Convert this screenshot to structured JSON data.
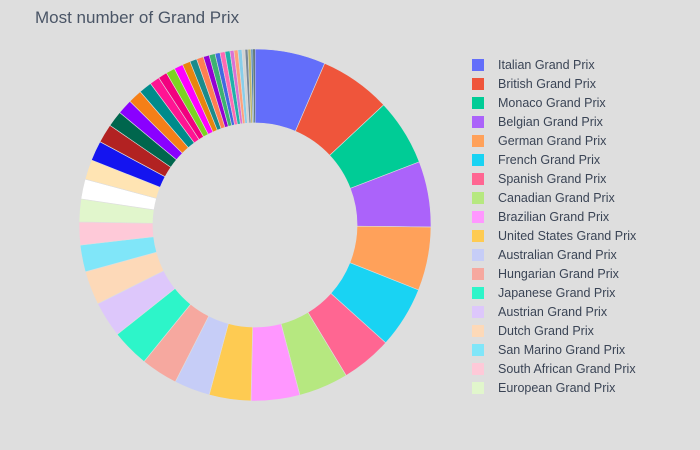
{
  "chart_data": {
    "type": "pie",
    "title": "Most number of Grand Prix",
    "hole": 0.58,
    "legend_position": "right",
    "slices": [
      {
        "label": "Italian Grand Prix",
        "value": 71,
        "color": "#636efa"
      },
      {
        "label": "British Grand Prix",
        "value": 72,
        "color": "#ef553b"
      },
      {
        "label": "Monaco Grand Prix",
        "value": 67,
        "color": "#00cc96"
      },
      {
        "label": "Belgian Grand Prix",
        "value": 66,
        "color": "#ab63fa"
      },
      {
        "label": "German Grand Prix",
        "value": 64,
        "color": "#ffa15a"
      },
      {
        "label": "French Grand Prix",
        "value": 62,
        "color": "#19d3f3"
      },
      {
        "label": "Spanish Grand Prix",
        "value": 51,
        "color": "#ff6692"
      },
      {
        "label": "Canadian Grand Prix",
        "value": 50,
        "color": "#b6e880"
      },
      {
        "label": "Brazilian Grand Prix",
        "value": 49,
        "color": "#ff97ff"
      },
      {
        "label": "United States Grand Prix",
        "value": 42,
        "color": "#fecb52"
      },
      {
        "label": "Australian Grand Prix",
        "value": 36,
        "color": "#c6cdf7"
      },
      {
        "label": "Hungarian Grand Prix",
        "value": 37,
        "color": "#f6a89f"
      },
      {
        "label": "Japanese Grand Prix",
        "value": 38,
        "color": "#2df5c9"
      },
      {
        "label": "Austrian Grand Prix",
        "value": 36,
        "color": "#ddc7fb"
      },
      {
        "label": "Dutch Grand Prix",
        "value": 34,
        "color": "#fdd9b8"
      },
      {
        "label": "San Marino Grand Prix",
        "value": 27,
        "color": "#80e6f9"
      },
      {
        "label": "South African Grand Prix",
        "value": 23,
        "color": "#fec9d8"
      },
      {
        "label": "European Grand Prix",
        "value": 23,
        "color": "#e1f6cc"
      },
      {
        "value": 20,
        "color": "#ffffff"
      },
      {
        "value": 20,
        "color": "#ffe4b3"
      },
      {
        "value": 20,
        "color": "#1414f0"
      },
      {
        "value": 19,
        "color": "#b22222"
      },
      {
        "value": 16,
        "color": "#00664d"
      },
      {
        "value": 15,
        "color": "#8a00ff"
      },
      {
        "value": 14,
        "color": "#f57f17"
      },
      {
        "value": 13,
        "color": "#008b8b"
      },
      {
        "value": 10,
        "color": "#ff1493"
      },
      {
        "value": 9,
        "color": "#f2007f"
      },
      {
        "value": 9,
        "color": "#7cd322"
      },
      {
        "value": 9,
        "color": "#ff00ff"
      },
      {
        "value": 8,
        "color": "#e9850e"
      },
      {
        "value": 7,
        "color": "#1b8b8b"
      },
      {
        "value": 7,
        "color": "#ff7f50"
      },
      {
        "value": 6,
        "color": "#9400d3"
      },
      {
        "value": 6,
        "color": "#3cb371"
      },
      {
        "value": 5,
        "color": "#4169e1"
      },
      {
        "value": 5,
        "color": "#ff69b4"
      },
      {
        "value": 5,
        "color": "#20b2aa"
      },
      {
        "value": 4,
        "color": "#da70d6"
      },
      {
        "value": 4,
        "color": "#ffa07a"
      },
      {
        "value": 4,
        "color": "#87ceeb"
      },
      {
        "value": 3,
        "color": "#d3d3d3"
      },
      {
        "value": 3,
        "color": "#778899"
      },
      {
        "value": 3,
        "color": "#bdb76b"
      },
      {
        "value": 2,
        "color": "#4682b4"
      },
      {
        "value": 2,
        "color": "#2f4f4f"
      }
    ]
  }
}
